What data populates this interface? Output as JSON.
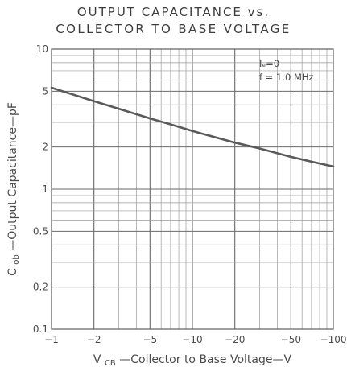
{
  "chart_data": {
    "type": "line",
    "title": [
      "OUTPUT CAPACITANCE vs.",
      "COLLECTOR TO BASE VOLTAGE"
    ],
    "xlabel": {
      "sym": "V",
      "sub": "CB",
      "text": "—Collector to Base Voltage—V"
    },
    "ylabel": {
      "sym": "C",
      "sub": "ob",
      "text": "—Output Capacitance—pF"
    },
    "x_scale": "log",
    "y_scale": "log",
    "xlim": [
      -1,
      -100
    ],
    "ylim": [
      0.1,
      10
    ],
    "x_ticks": [
      {
        "value": -1,
        "label": "−1"
      },
      {
        "value": -2,
        "label": "−2"
      },
      {
        "value": -5,
        "label": "−5"
      },
      {
        "value": -10,
        "label": "−10"
      },
      {
        "value": -20,
        "label": "−20"
      },
      {
        "value": -50,
        "label": "−50"
      },
      {
        "value": -100,
        "label": "−100"
      }
    ],
    "y_ticks": [
      {
        "value": 0.1,
        "label": "0.1"
      },
      {
        "value": 0.2,
        "label": "0.2"
      },
      {
        "value": 0.5,
        "label": "0.5"
      },
      {
        "value": 1,
        "label": "1"
      },
      {
        "value": 2,
        "label": "2"
      },
      {
        "value": 5,
        "label": "5"
      },
      {
        "value": 10,
        "label": "10"
      }
    ],
    "grid": true,
    "annotations": [
      "Iₑ=0",
      "f = 1.0 MHz"
    ],
    "series": [
      {
        "color": "#5a5a5a",
        "x": [
          -1,
          -2,
          -3,
          -5,
          -7,
          -10,
          -20,
          -30,
          -50,
          -70,
          -100
        ],
        "y": [
          5.3,
          4.25,
          3.75,
          3.2,
          2.9,
          2.6,
          2.15,
          1.95,
          1.7,
          1.57,
          1.45
        ]
      }
    ]
  }
}
